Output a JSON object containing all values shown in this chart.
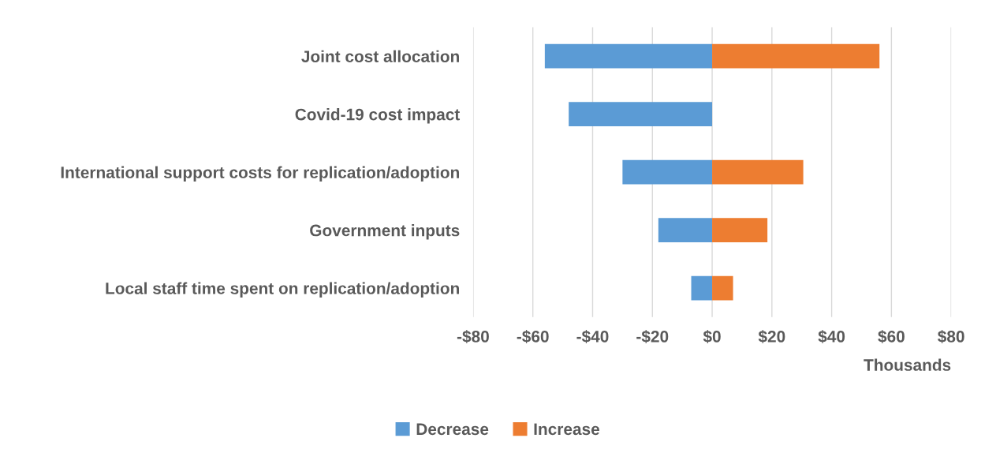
{
  "chart_data": {
    "type": "bar",
    "orientation": "horizontal",
    "stacked": true,
    "categories": [
      "Joint cost allocation",
      "Covid-19 cost impact",
      "International support costs for replication/adoption",
      "Government inputs",
      "Local staff time spent on replication/adoption"
    ],
    "series": [
      {
        "name": "Decrease",
        "color": "#5b9bd5",
        "values": [
          -56,
          -48,
          -30,
          -18,
          -7
        ]
      },
      {
        "name": "Increase",
        "color": "#ed7d31",
        "values": [
          56,
          0,
          30.5,
          18.5,
          7
        ]
      }
    ],
    "xlabel": "Thousands",
    "xlim": [
      -80,
      80
    ],
    "xticks": [
      {
        "value": -80,
        "label": "-$80"
      },
      {
        "value": -60,
        "label": "-$60"
      },
      {
        "value": -40,
        "label": "-$40"
      },
      {
        "value": -20,
        "label": "-$20"
      },
      {
        "value": 0,
        "label": "$0"
      },
      {
        "value": 20,
        "label": "$20"
      },
      {
        "value": 40,
        "label": "$40"
      },
      {
        "value": 60,
        "label": "$60"
      },
      {
        "value": 80,
        "label": "$80"
      }
    ],
    "grid": "x",
    "legend": "bottom"
  }
}
